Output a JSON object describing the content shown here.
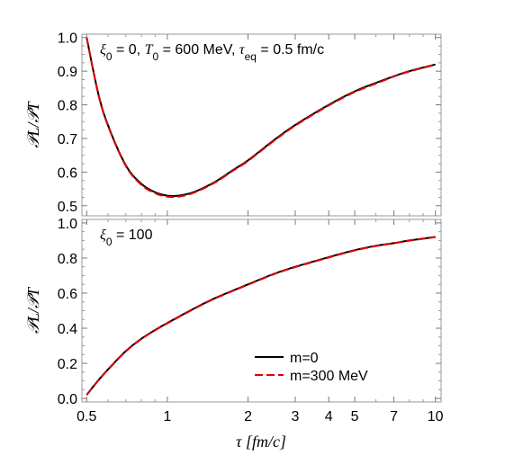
{
  "chart_data": [
    {
      "type": "line",
      "annotation": {
        "parts": [
          "ξ",
          "0",
          " = 0, ",
          "T",
          "0",
          " = 600 MeV, ",
          "τ",
          "eq",
          " = 0.5 fm/c"
        ]
      },
      "ylabel": "𝒫L/𝒫T",
      "xscale": "log",
      "xlim": [
        0.48,
        10.5
      ],
      "ylim": [
        0.47,
        1.01
      ],
      "yticks": [
        0.5,
        0.6,
        0.7,
        0.8,
        0.9,
        1.0
      ],
      "yticklabels": [
        "0.5",
        "0.6",
        "0.7",
        "0.8",
        "0.9",
        "1.0"
      ],
      "x": [
        0.5,
        0.55,
        0.6,
        0.7,
        0.8,
        0.9,
        1.0,
        1.1,
        1.25,
        1.5,
        1.75,
        2.0,
        2.5,
        3.0,
        4.0,
        5.0,
        6.0,
        7.0,
        8.0,
        10.0
      ],
      "series": [
        {
          "name": "m=0",
          "color": "#000000",
          "dash": "solid",
          "values": [
            1.0,
            0.84,
            0.74,
            0.62,
            0.565,
            0.54,
            0.53,
            0.53,
            0.54,
            0.57,
            0.605,
            0.635,
            0.695,
            0.74,
            0.8,
            0.84,
            0.865,
            0.885,
            0.9,
            0.92
          ]
        },
        {
          "name": "m=300 MeV",
          "color": "#e00000",
          "dash": "dashed",
          "values": [
            1.0,
            0.838,
            0.738,
            0.618,
            0.562,
            0.537,
            0.527,
            0.527,
            0.538,
            0.568,
            0.603,
            0.633,
            0.693,
            0.738,
            0.798,
            0.838,
            0.863,
            0.884,
            0.899,
            0.919
          ]
        }
      ]
    },
    {
      "type": "line",
      "annotation": {
        "parts": [
          "ξ",
          "0",
          " = 100"
        ]
      },
      "ylabel": "𝒫L/𝒫T",
      "xlabel": "τ [fm/c]",
      "xscale": "log",
      "xlim": [
        0.48,
        10.5
      ],
      "ylim": [
        -0.02,
        1.02
      ],
      "yticks": [
        0.0,
        0.2,
        0.4,
        0.6,
        0.8,
        1.0
      ],
      "yticklabels": [
        "0.0",
        "0.2",
        "0.4",
        "0.6",
        "0.8",
        "1.0"
      ],
      "xticks": [
        0.5,
        1,
        2,
        3,
        4,
        5,
        7,
        10
      ],
      "xticklabels": [
        "0.5",
        "1",
        "2",
        "3",
        "4",
        "5",
        "7",
        "10"
      ],
      "x": [
        0.5,
        0.55,
        0.6,
        0.7,
        0.8,
        0.9,
        1.0,
        1.25,
        1.5,
        2.0,
        2.5,
        3.0,
        4.0,
        5.0,
        6.0,
        7.0,
        8.0,
        10.0
      ],
      "series": [
        {
          "name": "m=0",
          "color": "#000000",
          "dash": "solid",
          "values": [
            0.02,
            0.1,
            0.165,
            0.27,
            0.34,
            0.39,
            0.43,
            0.51,
            0.57,
            0.65,
            0.71,
            0.75,
            0.805,
            0.845,
            0.87,
            0.885,
            0.9,
            0.92
          ]
        },
        {
          "name": "m=300 MeV",
          "color": "#e00000",
          "dash": "dashed",
          "values": [
            0.02,
            0.098,
            0.163,
            0.268,
            0.338,
            0.388,
            0.428,
            0.508,
            0.568,
            0.648,
            0.708,
            0.748,
            0.803,
            0.843,
            0.868,
            0.884,
            0.899,
            0.919
          ]
        }
      ],
      "legend": {
        "position": "bottom-right",
        "entries": [
          {
            "label": "m=0",
            "color": "#000000",
            "dash": "solid"
          },
          {
            "label": "m=300 MeV",
            "color": "#e00000",
            "dash": "dashed"
          }
        ]
      }
    }
  ]
}
